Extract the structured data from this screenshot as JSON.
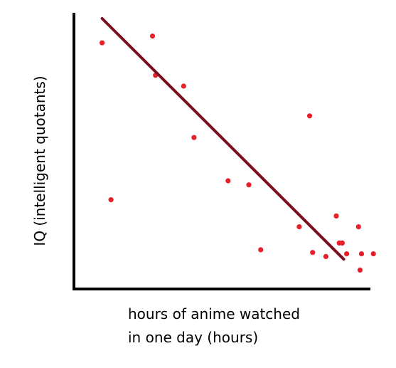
{
  "chart_data": {
    "type": "scatter",
    "title": "",
    "xlabel_lines": [
      "hours of anime watched",
      "in one day (hours)"
    ],
    "ylabel": "IQ (intelligent quotants)",
    "xlim": [
      0,
      10
    ],
    "ylim": [
      0,
      10
    ],
    "ticks": "none",
    "grid": false,
    "legend": "none",
    "point_color": "#e8202a",
    "trend_color": "#7a0f1e",
    "axis_color": "#000000",
    "series": [
      {
        "name": "observations",
        "x": [
          0.95,
          1.25,
          2.65,
          2.75,
          3.7,
          4.05,
          5.2,
          5.9,
          6.3,
          7.6,
          7.95,
          8.05,
          8.5,
          8.85,
          8.95,
          9.05,
          9.2,
          9.6,
          9.65,
          9.7,
          10.1
        ],
        "y": [
          9.1,
          3.3,
          9.35,
          7.9,
          7.5,
          5.6,
          4.0,
          3.85,
          1.45,
          2.3,
          6.4,
          1.35,
          1.2,
          2.7,
          1.7,
          1.7,
          1.3,
          2.3,
          0.7,
          1.3,
          1.3
        ]
      }
    ],
    "trendline": {
      "x": [
        0.95,
        9.1
      ],
      "y": [
        10.0,
        1.1
      ]
    }
  }
}
